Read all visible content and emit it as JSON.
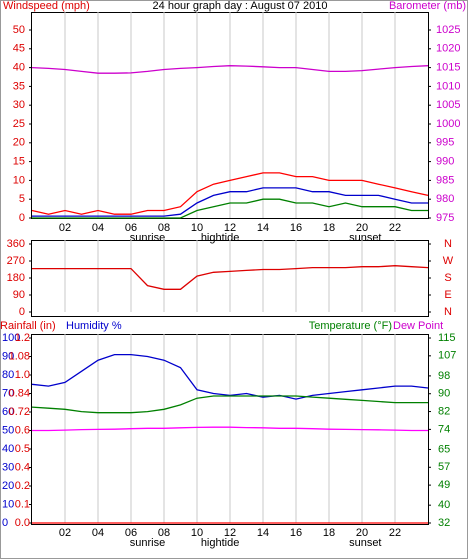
{
  "chart_data": [
    {
      "type": "line",
      "title": "24 hour graph day : August 07 2010",
      "ylabel": "Windspeed (mph)",
      "y2label": "Barometer (mb)",
      "x": [
        0,
        1,
        2,
        3,
        4,
        5,
        6,
        7,
        8,
        9,
        10,
        11,
        12,
        13,
        14,
        15,
        16,
        17,
        18,
        19,
        20,
        21,
        22,
        23,
        24
      ],
      "xlim": [
        0,
        24
      ],
      "xticks": [
        {
          "value": 2,
          "label": "02"
        },
        {
          "value": 4,
          "label": "04"
        },
        {
          "value": 6,
          "label": "06"
        },
        {
          "value": 8,
          "label": "08"
        },
        10,
        12,
        14,
        16,
        18,
        20,
        22
      ],
      "ylim": [
        0,
        50
      ],
      "yticks": [
        0,
        5,
        10,
        15,
        20,
        25,
        30,
        35,
        40,
        45,
        50
      ],
      "y2lim": [
        975,
        1025
      ],
      "y2ticks": [
        975,
        980,
        985,
        990,
        995,
        1000,
        1005,
        1010,
        1015,
        1020,
        1025
      ],
      "grid": true,
      "annotations": [
        {
          "text": "sunrise",
          "x": 7
        },
        {
          "text": "hightide",
          "x": 11.4
        },
        {
          "text": "sunset",
          "x": 20.2
        }
      ],
      "series": [
        {
          "color": "#ff0000",
          "values": [
            2,
            1,
            2,
            1,
            2,
            1,
            1,
            2,
            2,
            3,
            7,
            9,
            10,
            11,
            12,
            12,
            11,
            11,
            10,
            10,
            10,
            9,
            8,
            7,
            6
          ]
        },
        {
          "color": "#0000cc",
          "values": [
            0.5,
            0.5,
            0.5,
            0.5,
            0.5,
            0.5,
            0.5,
            0.5,
            0.5,
            1,
            4,
            6,
            7,
            7,
            8,
            8,
            8,
            7,
            7,
            6,
            6,
            6,
            5,
            4,
            4
          ]
        },
        {
          "color": "#008000",
          "values": [
            0,
            0,
            0,
            0,
            0,
            0,
            0,
            0,
            0,
            0,
            2,
            3,
            4,
            4,
            5,
            5,
            4,
            4,
            3,
            4,
            3,
            3,
            3,
            2,
            2
          ]
        },
        {
          "color": "#cc00cc",
          "axis": "y2",
          "values": [
            1015,
            1014.8,
            1014.5,
            1014,
            1013.5,
            1013.5,
            1013.6,
            1014,
            1014.5,
            1014.8,
            1015,
            1015.3,
            1015.5,
            1015.4,
            1015.2,
            1015,
            1015,
            1014.5,
            1014,
            1014,
            1014.2,
            1014.6,
            1015,
            1015.3,
            1015.5
          ]
        }
      ]
    },
    {
      "type": "line",
      "x": [
        0,
        1,
        2,
        3,
        4,
        5,
        6,
        7,
        8,
        9,
        10,
        11,
        12,
        13,
        14,
        15,
        16,
        17,
        18,
        19,
        20,
        21,
        22,
        23,
        24
      ],
      "xlim": [
        0,
        24
      ],
      "xticks": [
        {
          "value": 2,
          "label": "02"
        },
        {
          "value": 4,
          "label": "04"
        },
        {
          "value": 6,
          "label": "06"
        },
        {
          "value": 8,
          "label": "08"
        },
        10,
        12,
        14,
        16,
        18,
        20,
        22
      ],
      "ylim": [
        0,
        360
      ],
      "yticks": [
        0,
        90,
        180,
        270,
        360
      ],
      "y2lim": [
        0,
        360
      ],
      "y2ticks": [
        {
          "value": 0,
          "label": "N"
        },
        {
          "value": 90,
          "label": "E"
        },
        {
          "value": 180,
          "label": "S"
        },
        {
          "value": 270,
          "label": "W"
        },
        {
          "value": 360,
          "label": "N"
        }
      ],
      "grid": true,
      "series": [
        {
          "color": "#dd0000",
          "values": [
            230,
            230,
            230,
            230,
            230,
            230,
            230,
            140,
            120,
            120,
            190,
            210,
            215,
            220,
            225,
            225,
            230,
            235,
            235,
            235,
            240,
            240,
            245,
            240,
            235
          ]
        }
      ]
    },
    {
      "type": "line",
      "ylabel": "Humidity %",
      "y3label": "Rainfall (in)",
      "y2label": "Temperature (°F)",
      "y2label2": "Dew Point",
      "x": [
        0,
        1,
        2,
        3,
        4,
        5,
        6,
        7,
        8,
        9,
        10,
        11,
        12,
        13,
        14,
        15,
        16,
        17,
        18,
        19,
        20,
        21,
        22,
        23,
        24
      ],
      "xlim": [
        0,
        24
      ],
      "xticks": [
        {
          "value": 2,
          "label": "02"
        },
        {
          "value": 4,
          "label": "04"
        },
        {
          "value": 6,
          "label": "06"
        },
        {
          "value": 8,
          "label": "08"
        },
        10,
        12,
        14,
        16,
        18,
        20,
        22
      ],
      "ylim": [
        0,
        100
      ],
      "yticks": [
        0,
        10,
        20,
        30,
        40,
        50,
        60,
        70,
        80,
        90,
        100
      ],
      "y3lim": [
        0,
        1.2
      ],
      "y3ticks": [
        {
          "value": 0,
          "label": "0.0"
        },
        {
          "value": 0.12,
          "label": "0.1"
        },
        {
          "value": 0.24,
          "label": "0.2"
        },
        {
          "value": 0.36,
          "label": "0.4"
        },
        {
          "value": 0.48,
          "label": "0.5"
        },
        0.6,
        0.72,
        0.84,
        {
          "value": 0.96,
          "label": "1.0"
        },
        1.08,
        1.2
      ],
      "y2lim": [
        32,
        115
      ],
      "y2ticks": [
        32,
        40,
        49,
        57,
        65,
        74,
        82,
        90,
        98,
        107,
        115
      ],
      "grid": true,
      "annotations": [
        {
          "text": "sunrise",
          "x": 7
        },
        {
          "text": "hightide",
          "x": 11.4
        },
        {
          "text": "sunset",
          "x": 20.2
        }
      ],
      "series": [
        {
          "color": "#0000cc",
          "values": [
            75,
            74,
            76,
            82,
            88,
            91,
            91,
            90,
            88,
            84,
            72,
            70,
            69,
            70,
            68,
            69,
            67,
            69,
            70,
            71,
            72,
            73,
            74,
            74,
            73
          ]
        },
        {
          "color": "#008000",
          "axis": "y2",
          "values": [
            84,
            83.5,
            83,
            82,
            81.5,
            81.5,
            81.5,
            82,
            83,
            85,
            88,
            89,
            89,
            89,
            89,
            89,
            89,
            88.5,
            88,
            87.5,
            87,
            86.5,
            86,
            86,
            86
          ]
        },
        {
          "color": "#ff00ff",
          "axis": "y2",
          "values": [
            73.5,
            73.5,
            73.7,
            73.9,
            74,
            74.1,
            74.3,
            74.5,
            74.5,
            74.7,
            74.9,
            75,
            75,
            74.8,
            74.7,
            74.5,
            74.5,
            74.3,
            74.1,
            74,
            73.9,
            73.8,
            73.7,
            73.5,
            73.5
          ]
        },
        {
          "color": "#ff0000",
          "axis": "y3",
          "values": [
            0,
            0,
            0,
            0,
            0,
            0,
            0,
            0,
            0,
            0,
            0,
            0,
            0,
            0,
            0,
            0,
            0,
            0,
            0,
            0,
            0,
            0,
            0,
            0,
            0
          ]
        }
      ]
    }
  ]
}
